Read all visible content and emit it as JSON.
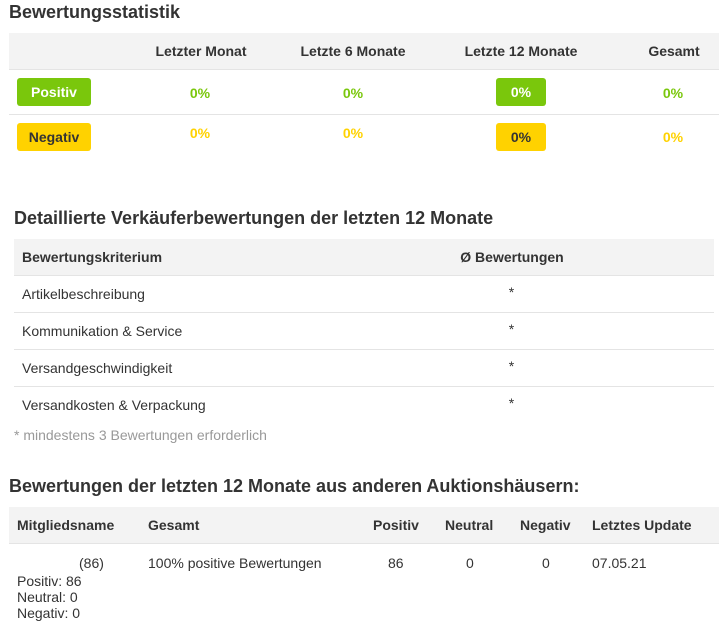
{
  "stats": {
    "title": "Bewertungsstatistik",
    "columns": [
      "Letzter Monat",
      "Letzte 6 Monate",
      "Letzte 12 Monate",
      "Gesamt"
    ],
    "rows": [
      {
        "label": "Positiv",
        "values": [
          "0%",
          "0%",
          "0%",
          "0%"
        ]
      },
      {
        "label": "Negativ",
        "values": [
          "0%",
          "0%",
          "0%",
          "0%"
        ]
      }
    ]
  },
  "detail": {
    "title": "Detaillierte Verkäuferbewertungen der letzten 12 Monate",
    "col_criterion": "Bewertungskriterium",
    "col_rating": "Ø Bewertungen",
    "rows": [
      {
        "criterion": "Artikelbeschreibung",
        "rating": "*"
      },
      {
        "criterion": "Kommunikation & Service",
        "rating": "*"
      },
      {
        "criterion": "Versandgeschwindigkeit",
        "rating": "*"
      },
      {
        "criterion": "Versandkosten & Verpackung",
        "rating": "*"
      }
    ],
    "note": "* mindestens 3 Bewertungen erforderlich"
  },
  "other": {
    "title": "Bewertungen der letzten 12 Monate aus anderen Auktionshäusern:",
    "columns": {
      "member": "Mitgliedsname",
      "total": "Gesamt",
      "positive": "Positiv",
      "neutral": "Neutral",
      "negative": "Negativ",
      "updated": "Letztes Update"
    },
    "row": {
      "count": "(86)",
      "total": "100% positive Bewertungen",
      "positive": "86",
      "neutral": "0",
      "negative": "0",
      "updated": "07.05.21",
      "breakdown_pos": "Positiv: 86",
      "breakdown_neu": "Neutral: 0",
      "breakdown_neg": "Negativ: 0"
    }
  },
  "colors": {
    "positive": "#7ac70c",
    "negative": "#ffd200",
    "header_bg": "#f3f3f3"
  }
}
